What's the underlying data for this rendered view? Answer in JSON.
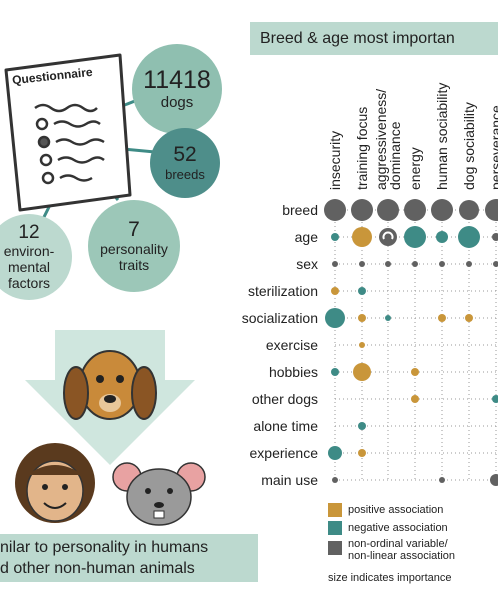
{
  "questionnaire": {
    "title": "Questionnaire"
  },
  "stats": {
    "dogs_num": "11418",
    "dogs_label": "dogs",
    "breeds_num": "52",
    "breeds_label": "breeds",
    "env_num": "12",
    "env_label": [
      "environ-",
      "mental",
      "factors"
    ],
    "traits_num": "7",
    "traits_label": [
      "personality",
      "traits"
    ]
  },
  "chart": {
    "title": "Breed & age most importan",
    "columns": [
      "insecurity",
      "training focus",
      "aggressiveness/ dominance",
      "energy",
      "human sociability",
      "dog sociability",
      "perseverance"
    ],
    "rows": [
      "breed",
      "age",
      "sex",
      "sterilization",
      "socialization",
      "exercise",
      "hobbies",
      "other dogs",
      "alone time",
      "experience",
      "main use"
    ]
  },
  "legend": {
    "positive": "positive association",
    "negative": "negative association",
    "nonordinal": [
      "non-ordinal variable/",
      "non-linear association"
    ],
    "size_note": "size indicates importance"
  },
  "bottom": {
    "line1": "nilar to personality in humans",
    "line2": "d other non-human animals"
  },
  "colors": {
    "positive": "#c9963a",
    "negative": "#3e8b86",
    "nonordinal": "#616161",
    "banner": "#bcd9cf",
    "dogs_circle": "#8fbfb0",
    "breeds_circle": "#4e8e8a",
    "env_circle": "#bcd9cf",
    "traits_circle": "#9cc7b8",
    "arrow": "#cfe6de"
  }
}
